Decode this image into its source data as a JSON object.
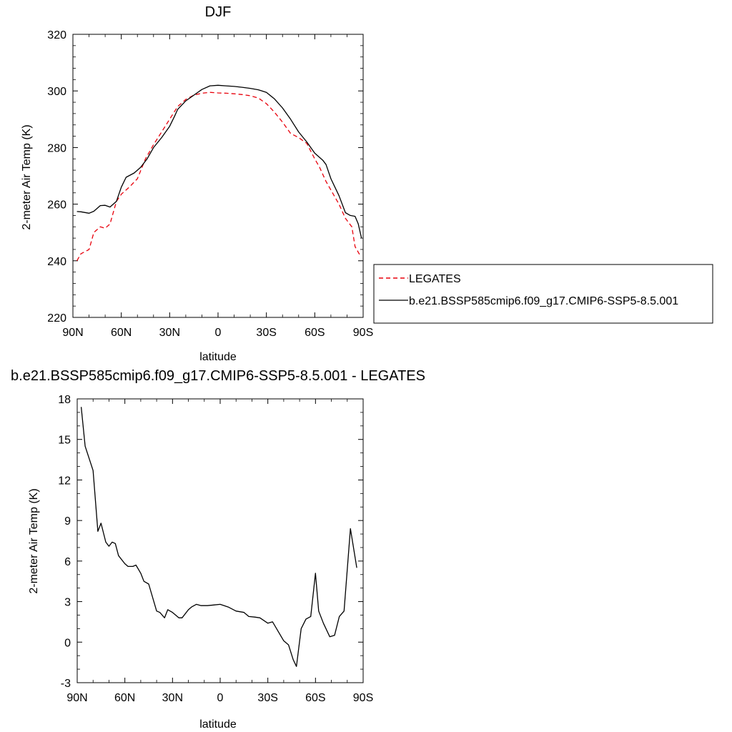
{
  "chart_data": [
    {
      "type": "line",
      "title": "DJF",
      "xlabel": "latitude",
      "ylabel": "2-meter Air Temp (K)",
      "xlim": [
        90,
        -90
      ],
      "ylim": [
        220,
        320
      ],
      "x_ticks": [
        {
          "value": 90,
          "label": "90N"
        },
        {
          "value": 60,
          "label": "60N"
        },
        {
          "value": 30,
          "label": "30N"
        },
        {
          "value": 0,
          "label": "0"
        },
        {
          "value": -30,
          "label": "30S"
        },
        {
          "value": -60,
          "label": "60S"
        },
        {
          "value": -90,
          "label": "90S"
        }
      ],
      "y_ticks": [
        220,
        240,
        260,
        280,
        300,
        320
      ],
      "legend": {
        "position": "right",
        "entries": [
          {
            "name": "LEGATES",
            "color": "#e8000b",
            "dash": "dashed"
          },
          {
            "name": "b.e21.BSSP585cmip6.f09_g17.CMIP6-SSP5-8.5.001",
            "color": "#000000",
            "dash": "solid"
          }
        ]
      },
      "series": [
        {
          "name": "LEGATES",
          "color": "#e8000b",
          "style": "dashed",
          "points": [
            [
              87.5,
              240
            ],
            [
              85,
              242.5
            ],
            [
              80,
              244
            ],
            [
              77,
              250
            ],
            [
              73,
              252
            ],
            [
              70,
              251.5
            ],
            [
              67,
              253
            ],
            [
              63,
              261
            ],
            [
              60,
              263.5
            ],
            [
              55,
              266
            ],
            [
              50,
              269
            ],
            [
              45,
              276
            ],
            [
              40,
              281
            ],
            [
              35,
              285.5
            ],
            [
              30,
              290
            ],
            [
              25,
              294.5
            ],
            [
              20,
              297
            ],
            [
              15,
              298.5
            ],
            [
              10,
              299.2
            ],
            [
              5,
              299.5
            ],
            [
              0,
              299.3
            ],
            [
              -5,
              299.2
            ],
            [
              -10,
              299
            ],
            [
              -15,
              298.7
            ],
            [
              -20,
              298.3
            ],
            [
              -25,
              297.5
            ],
            [
              -30,
              295.5
            ],
            [
              -35,
              292.5
            ],
            [
              -40,
              289
            ],
            [
              -45,
              285
            ],
            [
              -50,
              283.5
            ],
            [
              -55,
              281.5
            ],
            [
              -60,
              276
            ],
            [
              -63,
              273
            ],
            [
              -67,
              268
            ],
            [
              -70,
              265
            ],
            [
              -75,
              260
            ],
            [
              -79,
              255
            ],
            [
              -83,
              252
            ],
            [
              -85,
              245
            ],
            [
              -88,
              242
            ]
          ]
        },
        {
          "name": "b.e21.BSSP585cmip6.f09_g17.CMIP6-SSP5-8.5.001",
          "color": "#000000",
          "style": "solid",
          "points": [
            [
              87.5,
              257.4
            ],
            [
              85,
              257.3
            ],
            [
              80,
              256.8
            ],
            [
              77,
              257.5
            ],
            [
              73,
              259.5
            ],
            [
              70,
              259.6
            ],
            [
              67,
              259
            ],
            [
              63,
              261
            ],
            [
              60,
              266
            ],
            [
              57,
              269.5
            ],
            [
              52,
              271
            ],
            [
              48,
              273
            ],
            [
              44,
              276
            ],
            [
              40,
              280
            ],
            [
              35,
              283.5
            ],
            [
              30,
              287.5
            ],
            [
              27,
              291
            ],
            [
              25,
              293.5
            ],
            [
              20,
              296.5
            ],
            [
              15,
              298.5
            ],
            [
              10,
              300.5
            ],
            [
              5,
              301.8
            ],
            [
              0,
              302
            ],
            [
              -5,
              301.8
            ],
            [
              -10,
              301.6
            ],
            [
              -15,
              301.3
            ],
            [
              -20,
              300.9
            ],
            [
              -25,
              300.4
            ],
            [
              -30,
              299.5
            ],
            [
              -35,
              297.2
            ],
            [
              -40,
              294
            ],
            [
              -45,
              290
            ],
            [
              -50,
              285.5
            ],
            [
              -55,
              282
            ],
            [
              -60,
              278
            ],
            [
              -65,
              275.5
            ],
            [
              -67,
              274
            ],
            [
              -70,
              269
            ],
            [
              -75,
              263
            ],
            [
              -79,
              257
            ],
            [
              -82,
              256
            ],
            [
              -85,
              255.7
            ],
            [
              -87,
              253
            ],
            [
              -89,
              248
            ]
          ]
        }
      ]
    },
    {
      "type": "line",
      "title": "b.e21.BSSP585cmip6.f09_g17.CMIP6-SSP5-8.5.001 - LEGATES",
      "xlabel": "latitude",
      "ylabel": "2-meter Air Temp (K)",
      "xlim": [
        90,
        -90
      ],
      "ylim": [
        -3,
        18
      ],
      "x_ticks": [
        {
          "value": 90,
          "label": "90N"
        },
        {
          "value": 60,
          "label": "60N"
        },
        {
          "value": 30,
          "label": "30N"
        },
        {
          "value": 0,
          "label": "0"
        },
        {
          "value": -30,
          "label": "30S"
        },
        {
          "value": -60,
          "label": "60S"
        },
        {
          "value": -90,
          "label": "90S"
        }
      ],
      "y_ticks": [
        -3,
        0,
        3,
        6,
        9,
        12,
        15,
        18
      ],
      "series": [
        {
          "name": "",
          "color": "#000000",
          "style": "solid",
          "points": [
            [
              87.5,
              17.4
            ],
            [
              85,
              14.5
            ],
            [
              80,
              12.7
            ],
            [
              77,
              8.2
            ],
            [
              75,
              8.8
            ],
            [
              72,
              7.4
            ],
            [
              70,
              7.1
            ],
            [
              68,
              7.4
            ],
            [
              66,
              7.3
            ],
            [
              64,
              6.4
            ],
            [
              60,
              5.8
            ],
            [
              58,
              5.6
            ],
            [
              55,
              5.6
            ],
            [
              53,
              5.7
            ],
            [
              50,
              5.1
            ],
            [
              48,
              4.5
            ],
            [
              45,
              4.3
            ],
            [
              40,
              2.3
            ],
            [
              38,
              2.2
            ],
            [
              35,
              1.8
            ],
            [
              33,
              2.4
            ],
            [
              30,
              2.2
            ],
            [
              26,
              1.8
            ],
            [
              24,
              1.8
            ],
            [
              20,
              2.4
            ],
            [
              18,
              2.6
            ],
            [
              15,
              2.8
            ],
            [
              12,
              2.7
            ],
            [
              8,
              2.7
            ],
            [
              4,
              2.75
            ],
            [
              0,
              2.8
            ],
            [
              -5,
              2.6
            ],
            [
              -10,
              2.3
            ],
            [
              -15,
              2.2
            ],
            [
              -18,
              1.9
            ],
            [
              -22,
              1.85
            ],
            [
              -25,
              1.8
            ],
            [
              -30,
              1.4
            ],
            [
              -33,
              1.5
            ],
            [
              -37,
              0.7
            ],
            [
              -40,
              0.1
            ],
            [
              -43,
              -0.2
            ],
            [
              -46,
              -1.3
            ],
            [
              -48,
              -1.8
            ],
            [
              -51,
              1.0
            ],
            [
              -54,
              1.7
            ],
            [
              -57,
              1.9
            ],
            [
              -60,
              5.1
            ],
            [
              -62,
              2.3
            ],
            [
              -65,
              1.4
            ],
            [
              -69,
              0.4
            ],
            [
              -72,
              0.5
            ],
            [
              -75,
              1.9
            ],
            [
              -78,
              2.3
            ],
            [
              -82,
              8.4
            ],
            [
              -86,
              5.5
            ]
          ]
        }
      ]
    }
  ]
}
